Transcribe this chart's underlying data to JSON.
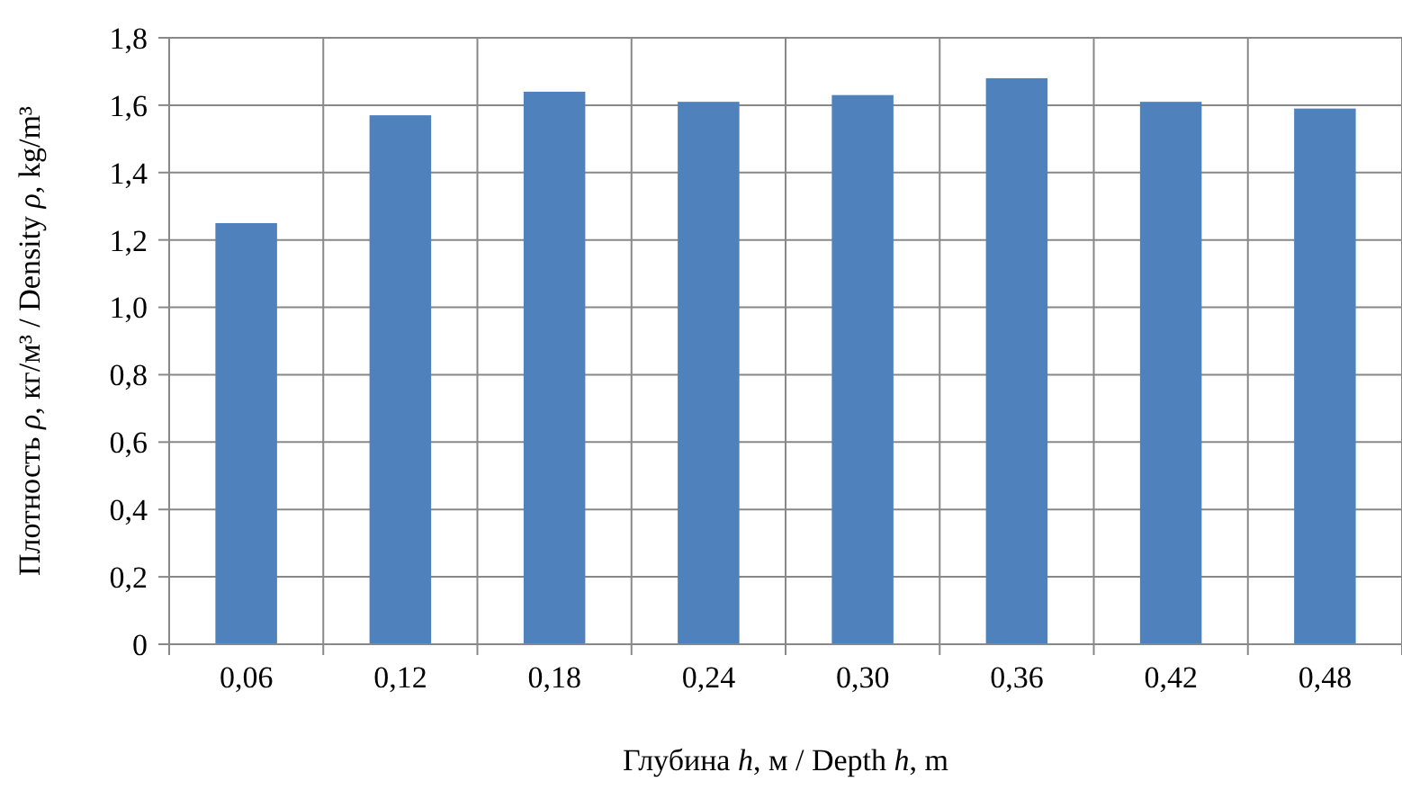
{
  "chart_data": {
    "type": "bar",
    "xlabel": "Глубина h, м / Depth h, m",
    "ylabel": "Плотность ρ, кг/м³ / Density ρ, kg/m³",
    "categories": [
      "0,06",
      "0,12",
      "0,18",
      "0,24",
      "0,30",
      "0,36",
      "0,42",
      "0,48"
    ],
    "values": [
      1.25,
      1.57,
      1.64,
      1.61,
      1.63,
      1.68,
      1.61,
      1.59
    ],
    "color": "#4f81bd",
    "ylim": [
      0,
      1.8
    ],
    "yticks": [
      0,
      {
        "value": 0.2,
        "label": "0,2"
      },
      {
        "value": 0.4,
        "label": "0,4"
      },
      {
        "value": 0.6,
        "label": "0,6"
      },
      {
        "value": 0.8,
        "label": "0,8"
      },
      {
        "value": 1.0,
        "label": "1,0"
      },
      {
        "value": 1.2,
        "label": "1,2"
      },
      {
        "value": 1.4,
        "label": "1,4"
      },
      {
        "value": 1.6,
        "label": "1,6"
      },
      {
        "value": 1.8,
        "label": "1,8"
      }
    ],
    "grid": true
  }
}
